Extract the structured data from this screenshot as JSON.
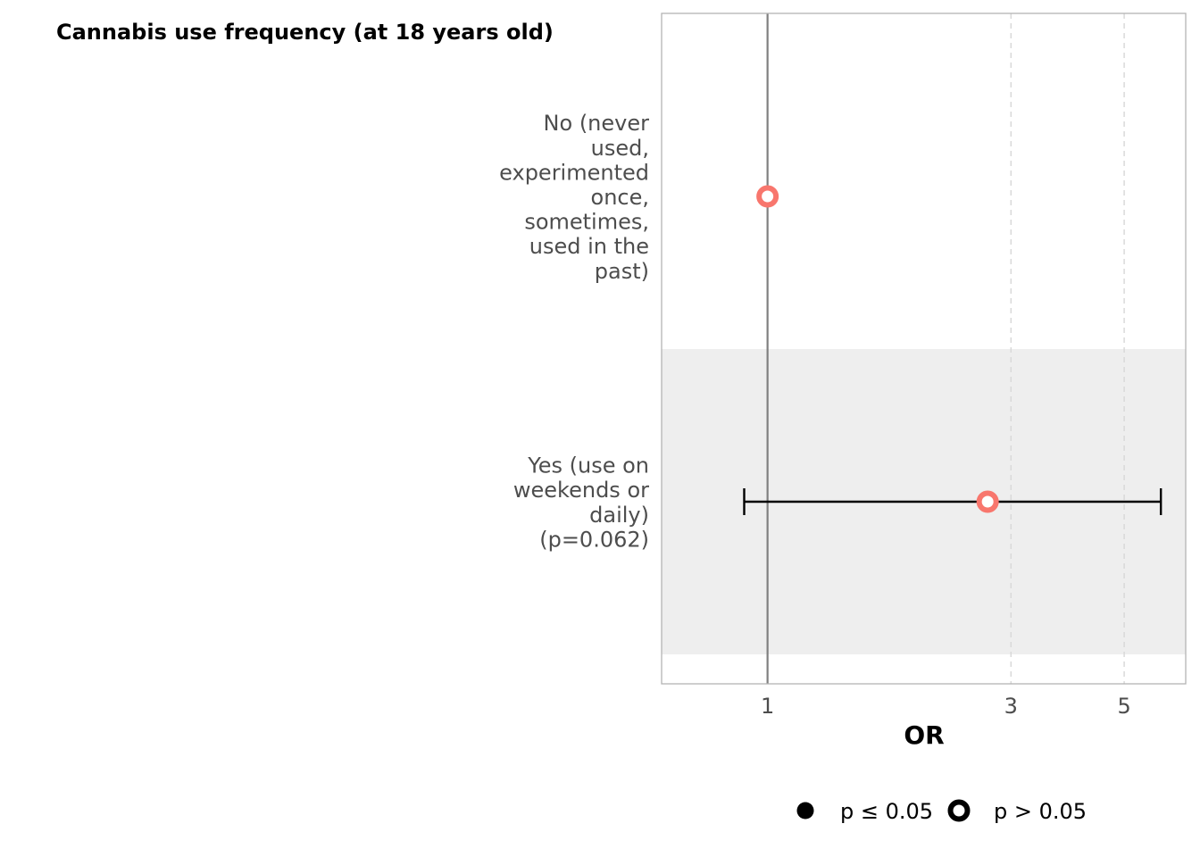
{
  "chart_data": {
    "type": "scatter",
    "title": "Cannabis use frequency (at 18 years old)",
    "xlabel": "OR",
    "ylabel": "",
    "xlim": [
      0.62,
      6.6
    ],
    "xticks": [
      1,
      3,
      5
    ],
    "x_scale": "log",
    "reference_line": 1,
    "grid": "vertical dashed at ticks",
    "categories": [
      {
        "label": [
          "No (never",
          "used,",
          "experimented",
          "once,",
          "sometimes,",
          "used in the",
          "past)"
        ],
        "or": 1,
        "ci": null,
        "significant": false,
        "shaded": false
      },
      {
        "label": [
          "Yes (use on",
          "weekends or",
          "daily)",
          "(p=0.062)"
        ],
        "or": 2.7,
        "ci": [
          0.9,
          5.9
        ],
        "significant": false,
        "shaded": true
      }
    ],
    "point_color": "#F8766D",
    "legend": {
      "placement": "bottom",
      "items": [
        {
          "label": "p ≤ 0.05",
          "marker": "filled-circle"
        },
        {
          "label": "p > 0.05",
          "marker": "hollow-circle"
        }
      ]
    }
  }
}
